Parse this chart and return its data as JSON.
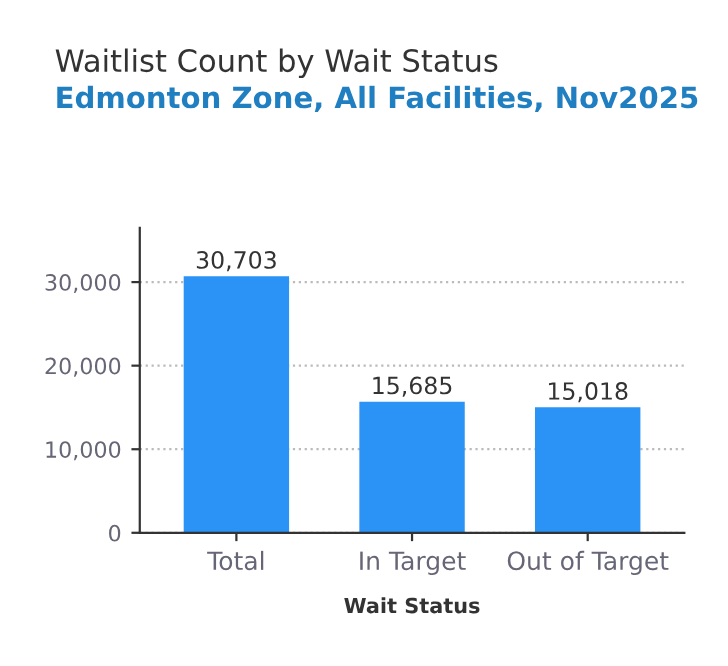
{
  "chart_data": {
    "type": "bar",
    "title": "Waitlist Count by Wait Status",
    "subtitle": "Edmonton Zone, All Facilities, Nov2025",
    "xlabel": "Wait Status",
    "categories": [
      "Total",
      "In Target",
      "Out of Target"
    ],
    "values": [
      30703,
      15685,
      15018
    ],
    "color": "#2b93f5",
    "value_labels": [
      "30,703",
      "15,685",
      "15,018"
    ],
    "ylim": [
      0,
      36500
    ],
    "yticks": [
      0,
      {
        "value": 10000,
        "label": "10,000"
      },
      {
        "value": 20000,
        "label": "20,000"
      },
      {
        "value": 30000,
        "label": "30,000"
      }
    ],
    "grid": "y"
  }
}
